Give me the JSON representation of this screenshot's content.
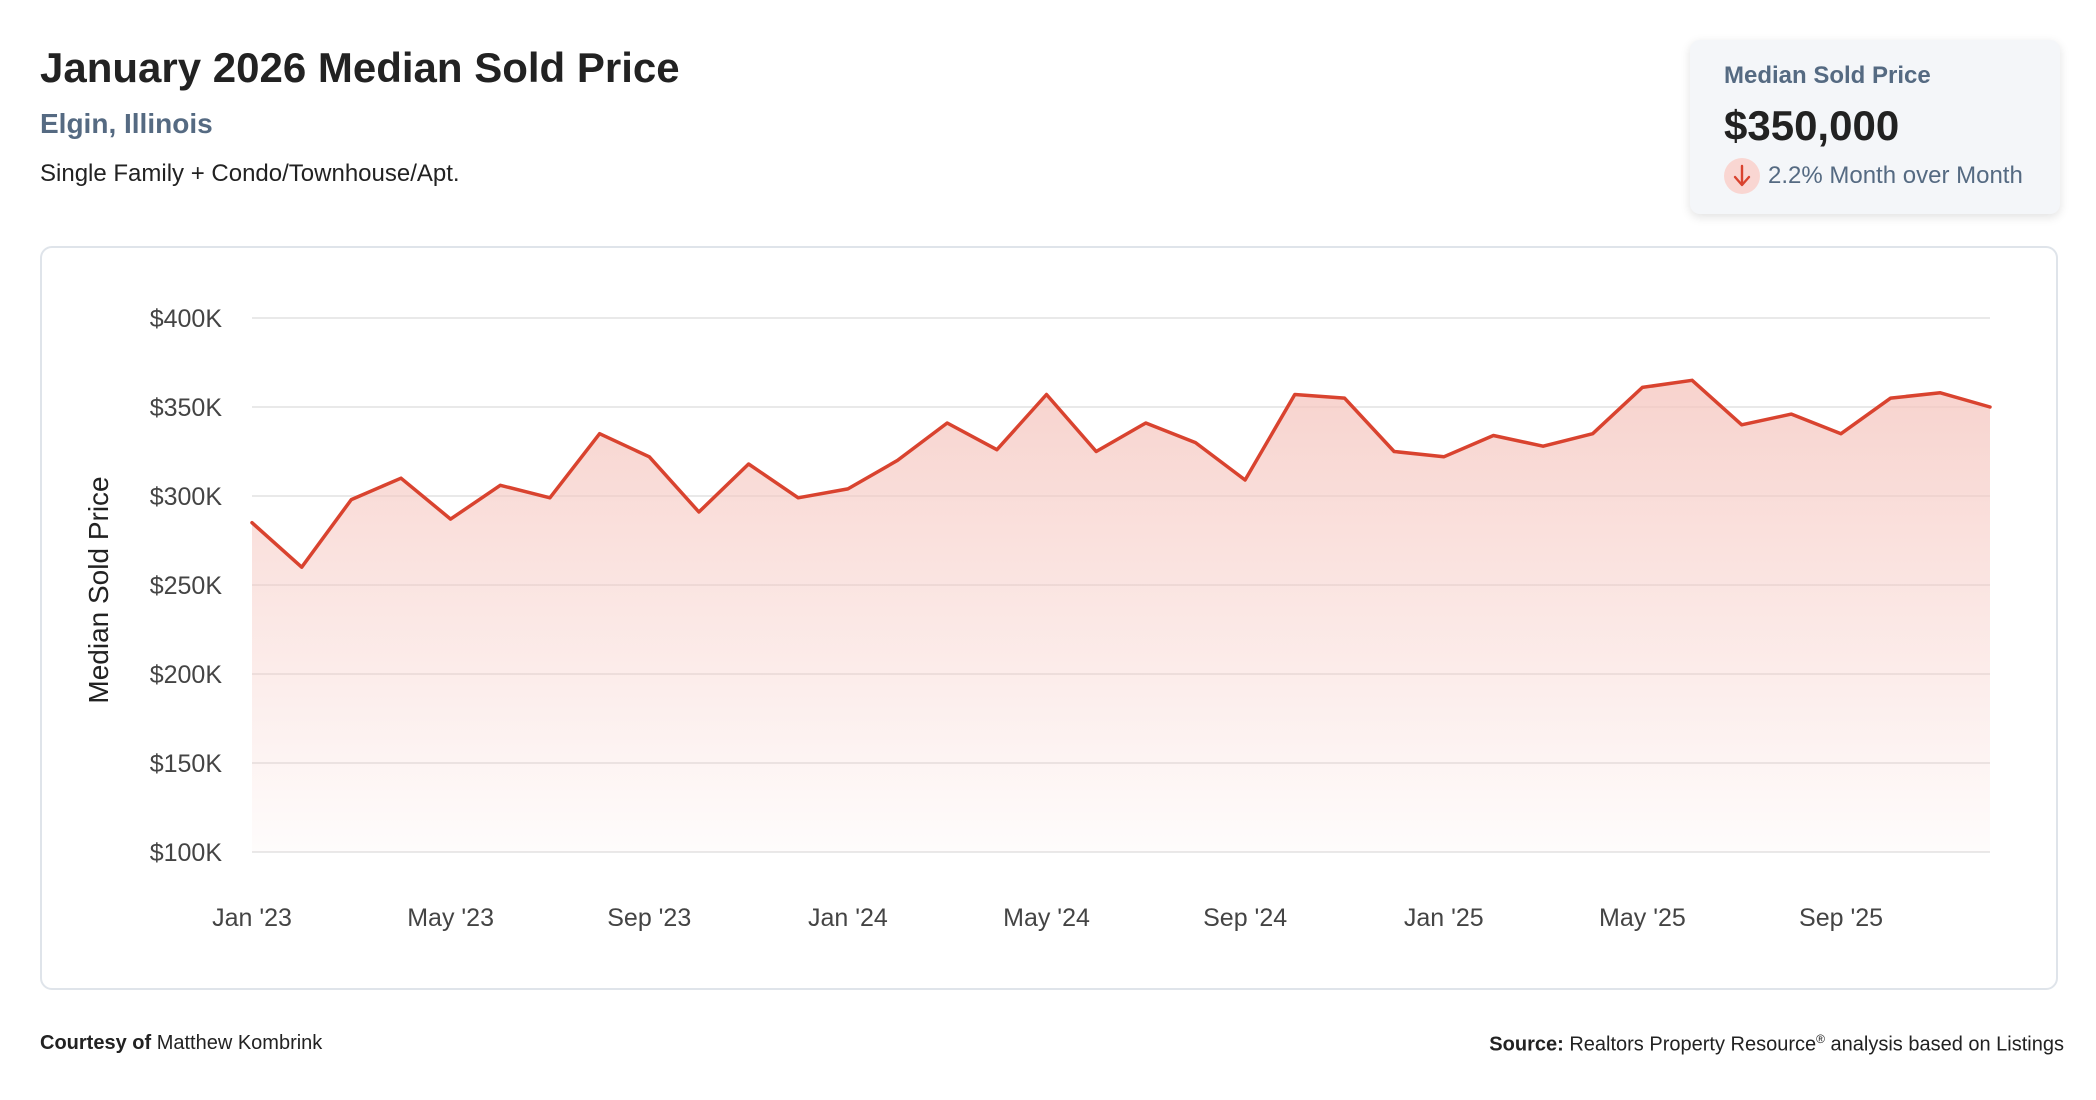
{
  "header": {
    "title": "January 2026 Median Sold Price",
    "location": "Elgin, Illinois",
    "property_types": "Single Family + Condo/Townhouse/Apt."
  },
  "stat_card": {
    "label": "Median Sold Price",
    "value": "$350,000",
    "change_text": "2.2% Month over Month",
    "direction": "down",
    "icon": "arrow-down-icon"
  },
  "footer": {
    "courtesy_label": "Courtesy of",
    "courtesy_name": "Matthew Kombrink",
    "source_label": "Source:",
    "source_text_a": "Realtors Property Resource",
    "source_mark": "®",
    "source_text_b": " analysis based on Listings"
  },
  "colors": {
    "line": "#d9432f",
    "fill_top": "#f5c4bd",
    "grid": "#e2e2e2",
    "accent_text": "#556a82"
  },
  "chart_data": {
    "type": "area",
    "ylabel": "Median Sold Price",
    "xlabel": "",
    "ylim": [
      100000,
      400000
    ],
    "y_ticks": [
      100000,
      150000,
      200000,
      250000,
      300000,
      350000,
      400000
    ],
    "y_tick_labels": [
      "$100K",
      "$150K",
      "$200K",
      "$250K",
      "$300K",
      "$350K",
      "$400K"
    ],
    "x_tick_labels": [
      "Jan '23",
      "May '23",
      "Sep '23",
      "Jan '24",
      "May '24",
      "Sep '24",
      "Jan '25",
      "May '25",
      "Sep '25"
    ],
    "x_tick_indices": [
      0,
      4,
      8,
      12,
      16,
      20,
      24,
      28,
      32
    ],
    "grid": true,
    "legend": "none",
    "categories": [
      "Jan '23",
      "Feb '23",
      "Mar '23",
      "Apr '23",
      "May '23",
      "Jun '23",
      "Jul '23",
      "Aug '23",
      "Sep '23",
      "Oct '23",
      "Nov '23",
      "Dec '23",
      "Jan '24",
      "Feb '24",
      "Mar '24",
      "Apr '24",
      "May '24",
      "Jun '24",
      "Jul '24",
      "Aug '24",
      "Sep '24",
      "Oct '24",
      "Nov '24",
      "Dec '24",
      "Jan '25",
      "Feb '25",
      "Mar '25",
      "Apr '25",
      "May '25",
      "Jun '25",
      "Jul '25",
      "Aug '25",
      "Sep '25",
      "Oct '25",
      "Nov '25",
      "Dec '25"
    ],
    "series": [
      {
        "values": [
          285000,
          260000,
          298000,
          310000,
          287000,
          306000,
          299000,
          335000,
          322000,
          291000,
          318000,
          299000,
          304000,
          320000,
          341000,
          326000,
          357000,
          325000,
          341000,
          330000,
          309000,
          357000,
          355000,
          325000,
          322000,
          334000,
          328000,
          335000,
          361000,
          365000,
          340000,
          346000,
          335000,
          355000,
          358000,
          350000
        ]
      }
    ]
  }
}
